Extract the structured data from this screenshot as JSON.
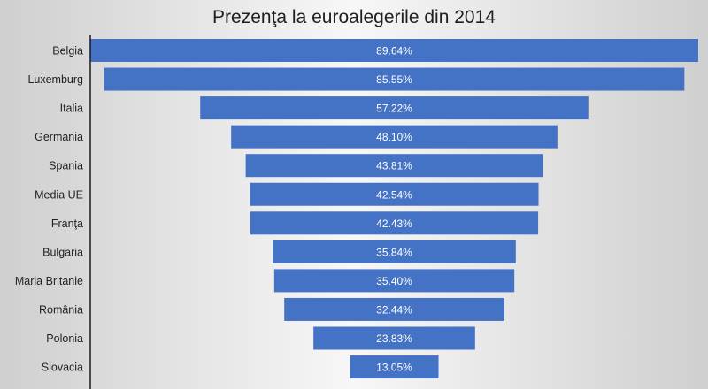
{
  "chart_data": {
    "type": "bar",
    "orientation": "horizontal",
    "style": "funnel-centered",
    "title": "Prezenţa la euroalegerile din 2014",
    "categories": [
      "Belgia",
      "Luxemburg",
      "Italia",
      "Germania",
      "Spania",
      "Media UE",
      "Franţa",
      "Bulgaria",
      "Maria Britanie",
      "România",
      "Polonia",
      "Slovacia"
    ],
    "values": [
      89.64,
      85.55,
      57.22,
      48.1,
      43.81,
      42.54,
      42.43,
      35.84,
      35.4,
      32.44,
      23.83,
      13.05
    ],
    "data_labels": [
      "89.64%",
      "85.55%",
      "57.22%",
      "48.10%",
      "43.81%",
      "42.54%",
      "42.43%",
      "35.84%",
      "35.40%",
      "32.44%",
      "23.83%",
      "13.05%"
    ],
    "unit": "%",
    "bar_color": "#4472c4",
    "grid": false,
    "legend": "none"
  }
}
